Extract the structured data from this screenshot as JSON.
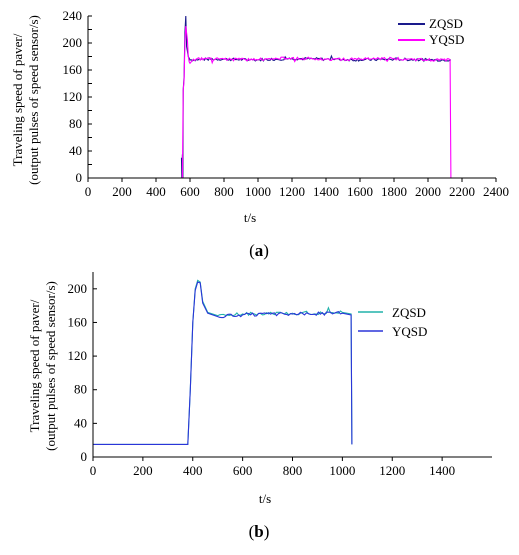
{
  "chart_data": [
    {
      "type": "line",
      "panel_label": "a",
      "xlabel": "t/s",
      "ylabel": [
        "Traveling speed of paver/",
        "(output pulses of speed sensor/s)"
      ],
      "xlim": [
        0,
        2400
      ],
      "ylim": [
        0,
        240
      ],
      "xticks": [
        0,
        200,
        400,
        600,
        800,
        1000,
        1200,
        1400,
        1600,
        1800,
        2000,
        2200,
        2400
      ],
      "yticks": [
        0,
        20,
        40,
        60,
        80,
        100,
        120,
        140,
        160,
        180,
        200,
        220,
        240
      ],
      "yticklabels": [
        "0",
        "",
        "40",
        "",
        "80",
        "",
        "120",
        "",
        "160",
        "",
        "200",
        "",
        "240"
      ],
      "grid": false,
      "legend": "top-right",
      "series": [
        {
          "name": "ZQSD",
          "color": "#1a1a8c",
          "x": [
            550,
            552,
            555,
            558,
            560,
            565,
            570,
            575,
            580,
            590,
            600,
            700,
            800,
            1000,
            1200,
            1400,
            1600,
            1800,
            2000,
            2130,
            2135
          ],
          "y": [
            30,
            0,
            35,
            0,
            130,
            150,
            215,
            240,
            195,
            180,
            175,
            176,
            176,
            175,
            177,
            176,
            175,
            176,
            175,
            175,
            175
          ]
        },
        {
          "name": "YQSD",
          "color": "#ff00ff",
          "x": [
            555,
            560,
            565,
            570,
            575,
            580,
            585,
            590,
            595,
            600,
            620,
            700,
            800,
            1000,
            1200,
            1400,
            1600,
            1800,
            2000,
            2130,
            2135
          ],
          "y": [
            0,
            130,
            145,
            200,
            225,
            215,
            205,
            180,
            172,
            170,
            176,
            177,
            176,
            175,
            178,
            176,
            176,
            177,
            175,
            175,
            0
          ]
        }
      ]
    },
    {
      "type": "line",
      "panel_label": "b",
      "xlabel": "t/s",
      "ylabel": [
        "Traveling speed of paver/",
        "(output pulses of speed sensor/s)"
      ],
      "xlim": [
        0,
        1600
      ],
      "ylim": [
        0,
        220
      ],
      "xticks": [
        0,
        200,
        400,
        600,
        800,
        1000,
        1200,
        1400
      ],
      "yticks": [
        0,
        40,
        80,
        120,
        160,
        200
      ],
      "grid": false,
      "legend": "right",
      "series": [
        {
          "name": "ZQSD",
          "color": "#20b2aa",
          "x": [
            0,
            380,
            390,
            400,
            410,
            420,
            430,
            440,
            460,
            500,
            600,
            800,
            1000,
            1035,
            1038
          ],
          "y": [
            15,
            15,
            80,
            160,
            200,
            210,
            208,
            185,
            172,
            168,
            170,
            171,
            172,
            170,
            15
          ]
        },
        {
          "name": "YQSD",
          "color": "#2b35d8",
          "x": [
            0,
            380,
            390,
            400,
            410,
            420,
            430,
            440,
            460,
            500,
            600,
            800,
            1000,
            1035,
            1038
          ],
          "y": [
            15,
            15,
            80,
            160,
            198,
            208,
            207,
            183,
            171,
            167,
            169,
            170,
            171,
            169,
            15
          ]
        }
      ]
    }
  ]
}
